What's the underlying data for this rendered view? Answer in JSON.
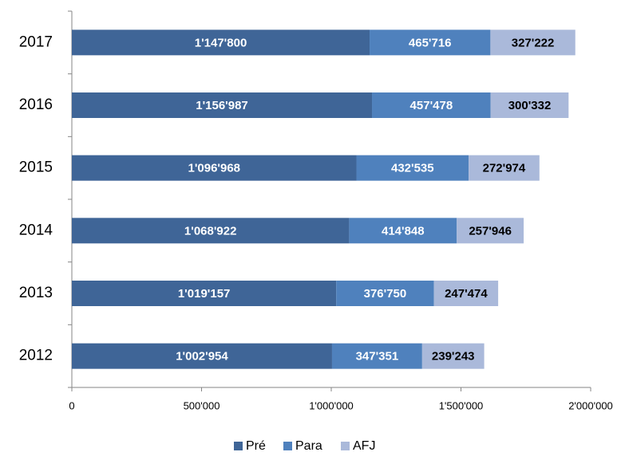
{
  "chart_data": {
    "type": "stacked_bar_horizontal",
    "categories": [
      "2017",
      "2016",
      "2015",
      "2014",
      "2013",
      "2012"
    ],
    "series": [
      {
        "name": "Pré",
        "color": "#3f6597",
        "values": [
          1147800,
          1156987,
          1096968,
          1068922,
          1019157,
          1002954
        ],
        "value_labels": [
          "1'147'800",
          "1'156'987",
          "1'096'968",
          "1'068'922",
          "1'019'157",
          "1'002'954"
        ]
      },
      {
        "name": "Para",
        "color": "#4f81bd",
        "values": [
          465716,
          457478,
          432535,
          414848,
          376750,
          347351
        ],
        "value_labels": [
          "465'716",
          "457'478",
          "432'535",
          "414'848",
          "376'750",
          "347'351"
        ]
      },
      {
        "name": "AFJ",
        "color": "#aab9da",
        "values": [
          327222,
          300332,
          272974,
          257946,
          247474,
          239243
        ],
        "value_labels": [
          "327'222",
          "300'332",
          "272'974",
          "257'946",
          "247'474",
          "239'243"
        ]
      }
    ],
    "xlim": [
      0,
      2000000
    ],
    "xticks": [
      0,
      {
        "value": 500000,
        "label": "500'000"
      },
      {
        "value": 1000000,
        "label": "1'000'000"
      },
      {
        "value": 1500000,
        "label": "1'500'000"
      },
      {
        "value": 2000000,
        "label": "2'000'000"
      }
    ],
    "legend": "bottom"
  }
}
